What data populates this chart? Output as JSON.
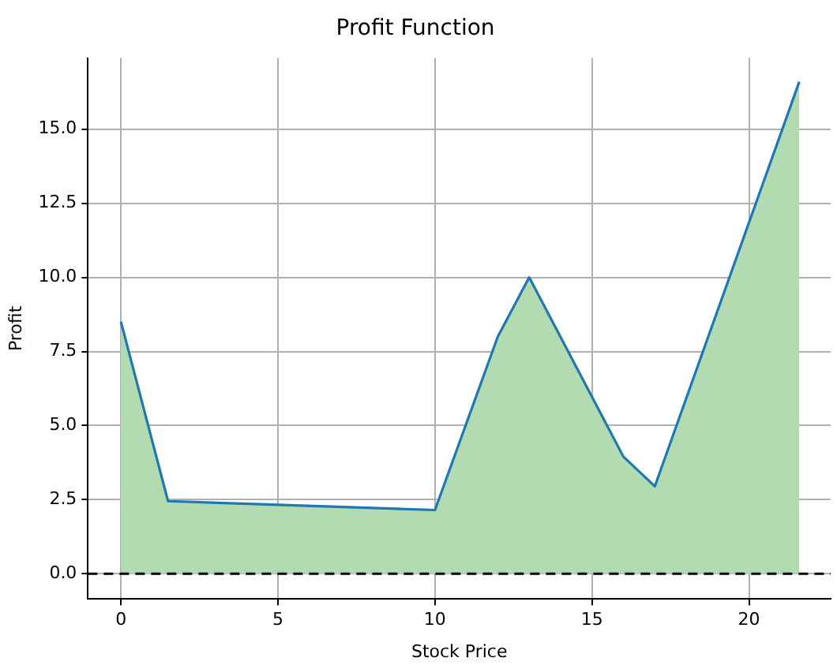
{
  "chart_data": {
    "type": "area",
    "title": "Profit Function",
    "xlabel": "Stock Price",
    "ylabel": "Profit",
    "x": [
      0,
      1.5,
      10,
      12,
      13,
      16,
      17,
      21.6
    ],
    "series": [
      {
        "color": "#b2dbb2",
        "values": [
          8.5,
          2.45,
          2.15,
          8,
          10,
          3.95,
          2.95,
          16.6
        ]
      },
      {
        "type": "line",
        "color": "#1f77b4",
        "values": [
          8.5,
          2.45,
          2.15,
          8,
          10,
          3.95,
          2.95,
          16.6
        ]
      }
    ],
    "xlim": [
      -1.05,
      22.6
    ],
    "xticks": [
      0,
      5,
      10,
      15,
      20
    ],
    "ylim": [
      -0.85,
      17.4
    ],
    "yticks": [
      {
        "value": 0,
        "label": "0.0"
      },
      {
        "value": 2.5,
        "label": "2.5"
      },
      {
        "value": 5,
        "label": "5.0"
      },
      {
        "value": 7.5,
        "label": "7.5"
      },
      {
        "value": 10,
        "label": "10.0"
      },
      {
        "value": 12.5,
        "label": "12.5"
      },
      {
        "value": 15,
        "label": "15.0"
      }
    ],
    "grid": true,
    "ref_lines": [
      {
        "axis": "y",
        "value": 0,
        "color": "#000000",
        "line_style": "dashed"
      }
    ]
  }
}
